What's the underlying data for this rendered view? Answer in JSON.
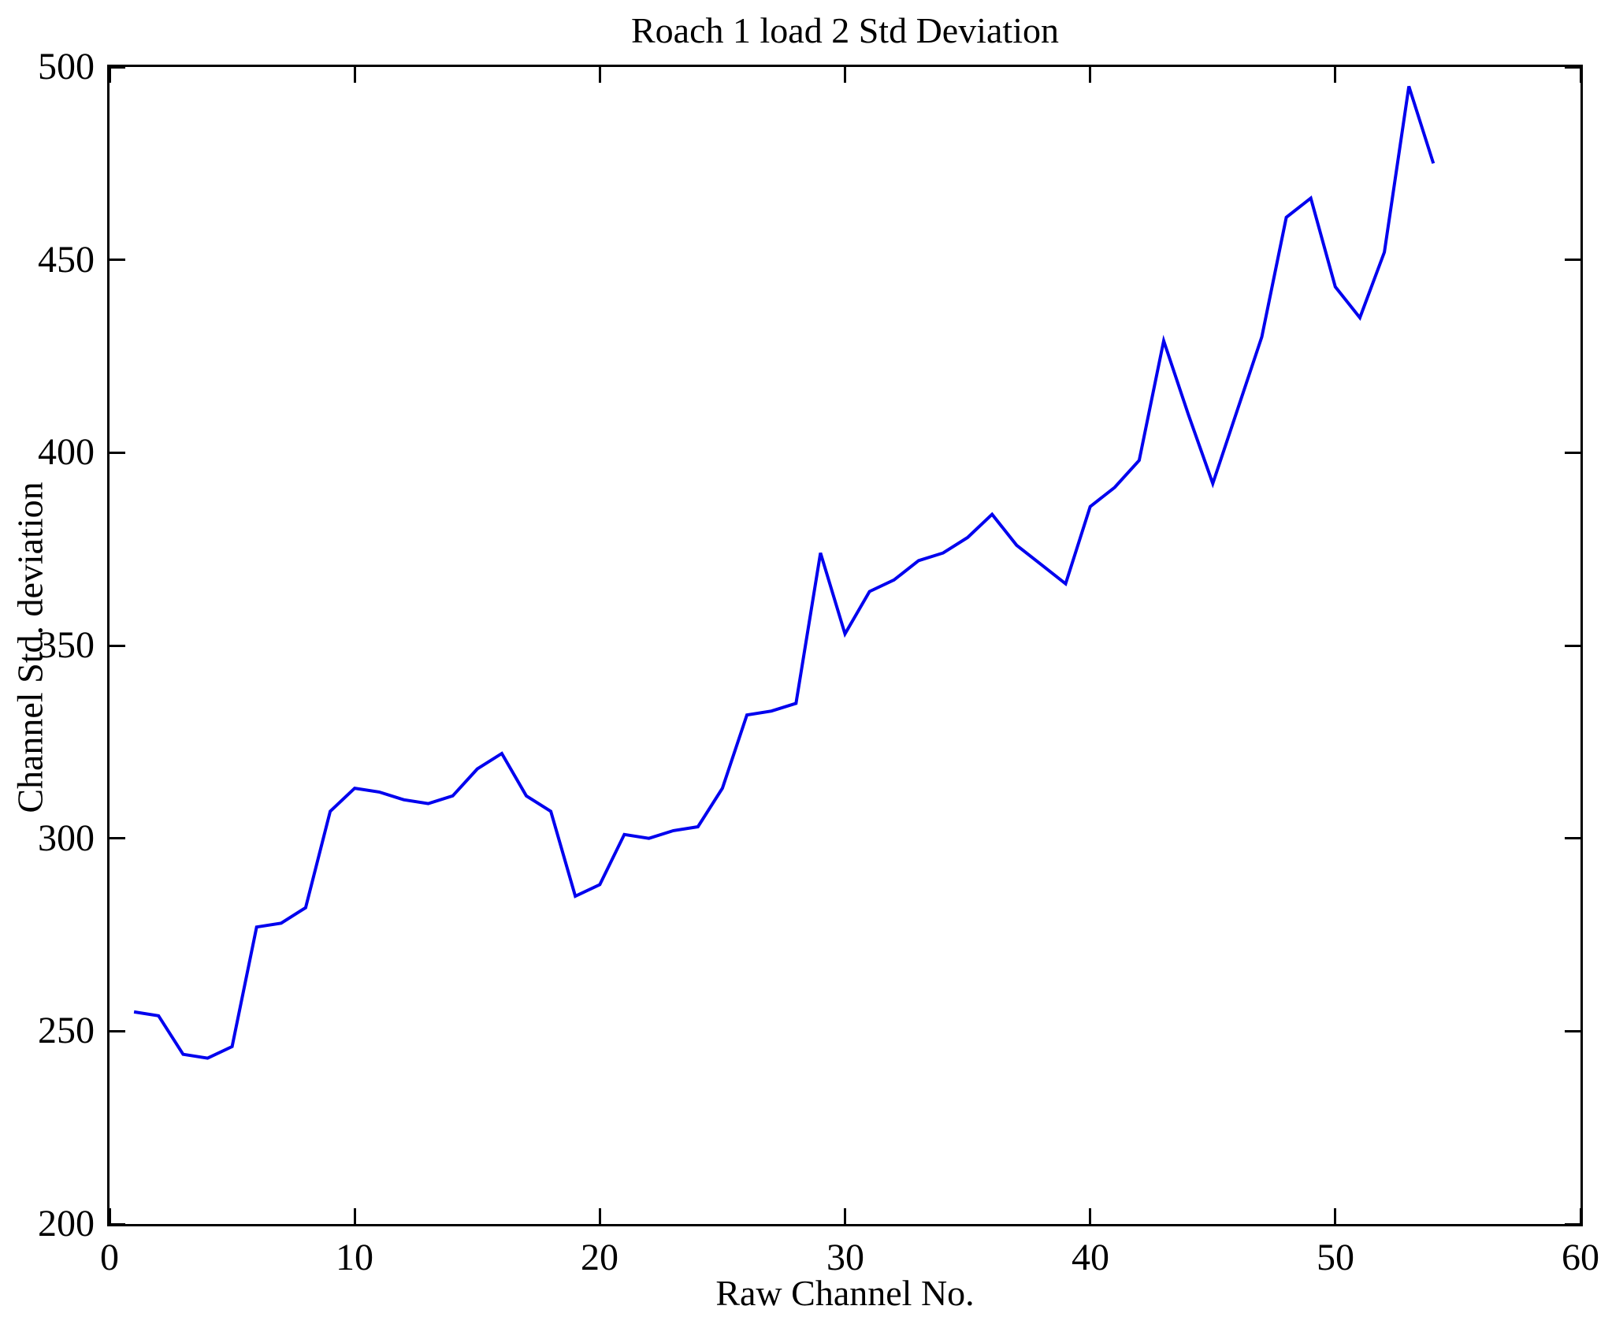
{
  "title": "Roach 1 load 2 Std Deviation",
  "x_axis_label": "Raw Channel No.",
  "y_axis_label": "Channel Std. deviation",
  "chart_data": {
    "type": "line",
    "title": "Roach 1 load 2 Std Deviation",
    "xlabel": "Raw Channel No.",
    "ylabel": "Channel Std. deviation",
    "xlim": [
      0,
      60
    ],
    "ylim": [
      200,
      500
    ],
    "x_ticks": [
      0,
      10,
      20,
      30,
      40,
      50,
      60
    ],
    "y_ticks": [
      200,
      250,
      300,
      350,
      400,
      450,
      500
    ],
    "grid": false,
    "legend_position": "none",
    "line_color": "#0000EE",
    "x": [
      1,
      2,
      3,
      4,
      5,
      6,
      7,
      8,
      9,
      10,
      11,
      12,
      13,
      14,
      15,
      16,
      17,
      18,
      19,
      20,
      21,
      22,
      23,
      24,
      25,
      26,
      27,
      28,
      29,
      30,
      31,
      32,
      33,
      34,
      35,
      36,
      37,
      38,
      39,
      40,
      41,
      42,
      43,
      44,
      45,
      46,
      47,
      48,
      49,
      50,
      51,
      52,
      53,
      54
    ],
    "series": [
      {
        "name": "Channel Std. deviation",
        "values": [
          255,
          254,
          244,
          243,
          246,
          277,
          278,
          282,
          307,
          313,
          312,
          310,
          309,
          311,
          318,
          322,
          311,
          307,
          285,
          288,
          301,
          300,
          302,
          303,
          313,
          332,
          333,
          335,
          374,
          353,
          364,
          367,
          372,
          374,
          378,
          384,
          376,
          371,
          366,
          386,
          391,
          398,
          429,
          410,
          392,
          411,
          430,
          461,
          466,
          443,
          435,
          452,
          495,
          475
        ]
      }
    ]
  }
}
